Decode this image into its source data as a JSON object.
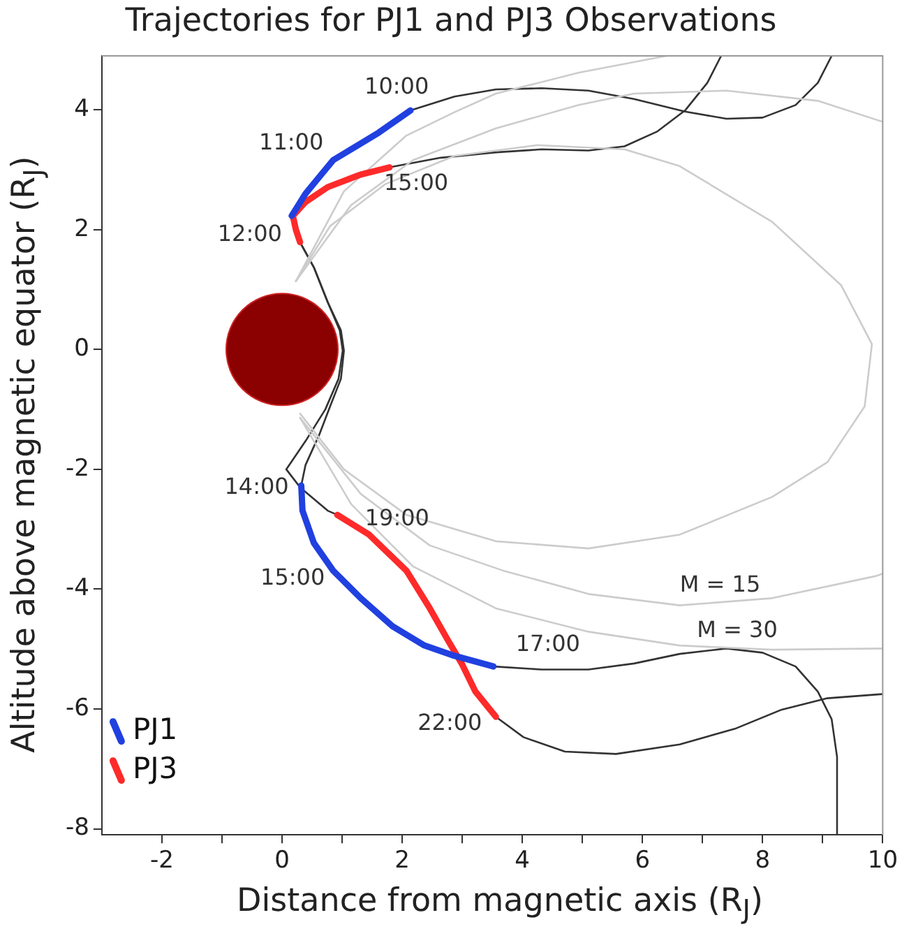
{
  "chart_data": {
    "type": "line",
    "title": "Trajectories for PJ1 and PJ3 Observations",
    "xlabel": "Distance from magnetic axis (R$_{J}$)",
    "ylabel": "Altitude above magnetic equator (R$_{J}$)",
    "xlim": [
      -3,
      10
    ],
    "xticks": [
      -2,
      {
        "value": -1,
        "label": null
      },
      0,
      {
        "value": 1,
        "label": null
      },
      2,
      {
        "value": 3,
        "label": null
      },
      4,
      {
        "value": 5,
        "label": null
      },
      6,
      {
        "value": 7,
        "label": null
      },
      8,
      {
        "value": 9,
        "label": null
      },
      10
    ],
    "ylim": [
      -8.1,
      4.9
    ],
    "yticks": [
      -8,
      -6,
      -4,
      -2,
      0,
      2,
      4
    ],
    "grid": false,
    "legend": "bottom left",
    "marker": "none",
    "line_style": "solid",
    "series": [
      {
        "color": "#cccccc",
        "x": [
          0.23,
          0.8,
          1.72,
          2.87,
          4.25,
          5.7,
          6.62,
          8.16,
          9.31,
          9.82,
          9.7,
          9.08,
          8.16,
          6.62,
          5.1,
          3.56,
          2.07,
          1.03,
          0.3
        ],
        "values": [
          1.14,
          2.06,
          2.76,
          3.23,
          3.41,
          3.34,
          3.06,
          2.13,
          1.07,
          0.09,
          -0.95,
          -1.88,
          -2.46,
          -3.09,
          -3.32,
          -3.2,
          -2.76,
          -2.0,
          -1.07
        ]
      },
      {
        "color": "#cccccc",
        "x": [
          0.23,
          1.15,
          2.18,
          3.56,
          4.94,
          5.86,
          7.4,
          8.92,
          10
        ],
        "values": [
          1.14,
          2.41,
          3.16,
          3.69,
          4.08,
          4.27,
          4.32,
          4.15,
          3.8
        ]
      },
      {
        "color": "#cccccc",
        "x": [
          0.3,
          1.31,
          2.46,
          3.68,
          5.1,
          6.62,
          8.16,
          9.89,
          10
        ],
        "values": [
          -1.14,
          -2.41,
          -3.27,
          -3.69,
          -4.08,
          -4.27,
          -4.15,
          -3.78,
          -3.74
        ]
      },
      {
        "color": "#cccccc",
        "x": [
          0.23,
          1.03,
          2.07,
          2.87,
          3.56,
          4.94,
          6.4
        ],
        "values": [
          1.14,
          2.64,
          3.57,
          3.96,
          4.27,
          4.62,
          4.9
        ]
      },
      {
        "color": "#cccccc",
        "x": [
          0.3,
          1.15,
          2.18,
          3.56,
          5.1,
          6.62,
          8.16,
          10
        ],
        "values": [
          -1.14,
          -2.58,
          -3.62,
          -4.32,
          -4.71,
          -4.94,
          -5.01,
          -4.99
        ]
      },
      {
        "color": "#333333",
        "x": [
          9.15,
          8.92,
          8.55,
          8.0,
          7.4,
          6.71,
          5.86,
          5.1,
          4.32,
          3.56,
          2.87,
          2.14
        ],
        "values": [
          4.9,
          4.45,
          4.08,
          3.87,
          3.85,
          3.97,
          4.18,
          4.32,
          4.36,
          4.34,
          4.22,
          3.99
        ]
      },
      {
        "color": "#333333",
        "x": [
          7.31,
          7.08,
          6.71,
          6.25,
          5.7,
          5.1,
          4.32,
          3.56,
          2.64,
          1.79
        ],
        "values": [
          4.9,
          4.45,
          3.99,
          3.64,
          3.39,
          3.32,
          3.34,
          3.29,
          3.2,
          3.04
        ]
      },
      {
        "color": "#333333",
        "x": [
          0.16,
          0.3,
          0.53,
          0.76,
          0.98,
          1.03,
          0.98,
          0.8,
          0.62,
          0.39,
          0.32
        ],
        "values": [
          2.23,
          1.79,
          1.37,
          0.79,
          0.32,
          -0.02,
          -0.49,
          -0.95,
          -1.42,
          -1.93,
          -2.27
        ]
      },
      {
        "color": "#333333",
        "x": [
          0.3,
          0.53,
          0.76,
          0.96,
          1.01,
          0.94,
          0.72,
          0.39,
          0.07,
          0.3,
          0.76,
          0.92
        ],
        "values": [
          1.79,
          1.37,
          0.79,
          0.32,
          -0.02,
          -0.49,
          -1.0,
          -1.53,
          -2.0,
          -2.3,
          -2.69,
          -2.76
        ]
      },
      {
        "color": "#333333",
        "x": [
          3.52,
          4.32,
          5.1,
          5.86,
          6.62,
          7.4,
          8.0,
          8.55,
          8.92,
          9.15,
          9.24,
          9.24
        ],
        "values": [
          -5.29,
          -5.34,
          -5.34,
          -5.24,
          -5.08,
          -4.99,
          -5.06,
          -5.29,
          -5.71,
          -6.17,
          -6.8,
          -8.1
        ]
      },
      {
        "color": "#333333",
        "x": [
          3.56,
          4.02,
          4.71,
          5.56,
          6.62,
          7.54,
          8.32,
          9.08,
          10
        ],
        "values": [
          -6.13,
          -6.47,
          -6.71,
          -6.75,
          -6.59,
          -6.33,
          -6.01,
          -5.82,
          -5.75
        ]
      },
      {
        "name": "PJ1",
        "color": "#2040e0",
        "x": [
          2.14,
          1.61,
          0.85,
          0.39,
          0.16,
          null,
          0.32,
          0.34,
          0.53,
          0.85,
          1.31,
          1.84,
          2.37,
          2.83,
          3.52
        ],
        "values": [
          3.99,
          3.62,
          3.16,
          2.6,
          2.23,
          null,
          -2.27,
          -2.69,
          -3.23,
          -3.69,
          -4.15,
          -4.62,
          -4.94,
          -5.1,
          -5.29
        ]
      },
      {
        "name": "PJ3",
        "color": "#ff2a2a",
        "x": [
          1.79,
          1.31,
          0.76,
          0.39,
          0.18,
          0.23,
          0.3,
          null,
          0.92,
          1.45,
          2.07,
          2.46,
          2.76,
          2.99,
          3.22,
          3.56
        ],
        "values": [
          3.04,
          2.92,
          2.71,
          2.46,
          2.23,
          2.0,
          1.79,
          null,
          -2.76,
          -3.09,
          -3.69,
          -4.32,
          -4.85,
          -5.24,
          -5.71,
          -6.13
        ]
      },
      {
        "type": "scatter",
        "marker": "circle",
        "color": "#8b0000",
        "x": [
          0
        ],
        "values": [
          0
        ]
      }
    ],
    "annotations": [
      {
        "text": "10:00",
        "x": 2.14,
        "y": 3.99
      },
      {
        "text": "11:00",
        "x": 0.85,
        "y": 3.16
      },
      {
        "text": "12:00",
        "x": 0.3,
        "y": 1.79
      },
      {
        "text": "15:00",
        "x": 1.79,
        "y": 3.04
      },
      {
        "text": "14:00",
        "x": 0.32,
        "y": -2.27
      },
      {
        "text": "19:00",
        "x": 1.45,
        "y": -3.09
      },
      {
        "text": "15:00",
        "x": 0.85,
        "y": -3.69
      },
      {
        "text": "17:00",
        "x": 3.52,
        "y": -5.29
      },
      {
        "text": "22:00",
        "x": 3.56,
        "y": -6.13
      },
      {
        "text": "M = 15",
        "x": 6.62,
        "y": -4.27
      },
      {
        "text": "M = 30",
        "x": 8.16,
        "y": -5.01
      }
    ]
  }
}
